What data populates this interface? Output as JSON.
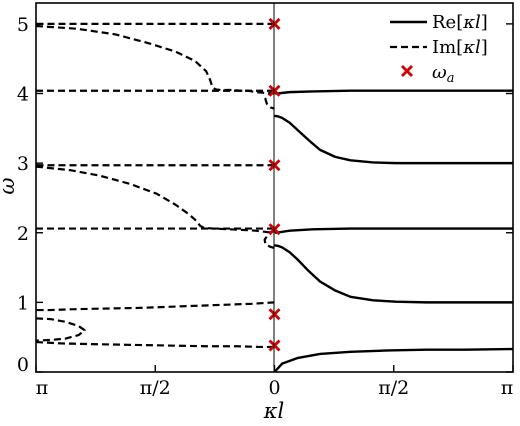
{
  "chart_data": {
    "type": "line",
    "title": "",
    "xlabel": "κl",
    "ylabel": "ω̄",
    "ylim": [
      0,
      5.3
    ],
    "grid": false,
    "legend_position": "top-right",
    "x_tick_labels": [
      "π",
      "π/2",
      "0",
      "π/2",
      "π"
    ],
    "y_ticks": [
      0,
      1,
      2,
      3,
      4,
      5
    ],
    "y_tick_labels": [
      "0",
      "1",
      "2",
      "3",
      "4",
      "5"
    ],
    "x_layout_note_left": "left half: Im[κl] branches, from π (left edge) to 0 (center)",
    "legend": [
      {
        "key": "re",
        "label_main": "Re[",
        "label_var": "κl",
        "label_end": "]"
      },
      {
        "key": "im",
        "label_main": "Im[",
        "label_var": "κl",
        "label_end": "]"
      },
      {
        "key": "wa",
        "label_var": "ω",
        "label_sub": "a"
      }
    ],
    "series": [
      {
        "name": "Re[κl]",
        "side": "right",
        "style": "solid",
        "x": [
          0,
          0.1,
          0.3,
          0.6,
          1.0,
          1.5,
          2.0,
          2.5,
          3.14159
        ],
        "y": [
          0,
          0.12,
          0.2,
          0.26,
          0.29,
          0.31,
          0.32,
          0.32,
          0.33
        ]
      },
      {
        "name": "Re[κl]",
        "side": "right",
        "style": "solid",
        "x": [
          0,
          0.05,
          0.1,
          0.2,
          0.3,
          0.45,
          0.6,
          0.8,
          1.0,
          1.3,
          1.6,
          2.0,
          2.5,
          3.14159
        ],
        "y": [
          1.82,
          1.81,
          1.79,
          1.72,
          1.62,
          1.45,
          1.3,
          1.17,
          1.08,
          1.03,
          1.01,
          1.0,
          1.0,
          1.0
        ]
      },
      {
        "name": "Re[κl]",
        "side": "right",
        "style": "solid",
        "x": [
          0,
          0.02,
          0.2,
          0.5,
          1.0,
          2.0,
          3.14159
        ],
        "y": [
          2.05,
          2.0,
          2.03,
          2.05,
          2.06,
          2.06,
          2.06
        ]
      },
      {
        "name": "Re[κl]",
        "side": "right",
        "style": "solid",
        "x": [
          0,
          0.05,
          0.1,
          0.2,
          0.3,
          0.45,
          0.6,
          0.8,
          1.0,
          1.3,
          1.6,
          2.0,
          2.5,
          3.14159
        ],
        "y": [
          3.68,
          3.67,
          3.65,
          3.58,
          3.48,
          3.33,
          3.19,
          3.09,
          3.04,
          3.01,
          3.0,
          3.0,
          3.0,
          3.0
        ]
      },
      {
        "name": "Re[κl]",
        "side": "right",
        "style": "solid",
        "x": [
          0,
          0.02,
          0.2,
          0.5,
          1.0,
          2.0,
          3.14159
        ],
        "y": [
          4.05,
          4.0,
          4.02,
          4.03,
          4.04,
          4.04,
          4.04
        ]
      },
      {
        "name": "Im[κl]",
        "side": "left",
        "style": "dashed",
        "x": [
          0,
          0.4,
          1.0,
          2.0,
          3.14159
        ],
        "y": [
          5.0,
          5.0,
          5.0,
          5.0,
          5.0
        ]
      },
      {
        "name": "Im[κl]",
        "side": "left",
        "style": "dashed",
        "x": [
          3.14159,
          2.6,
          2.1,
          1.65,
          1.3,
          1.05,
          0.9,
          0.85,
          0.82,
          0.78,
          0.7,
          0.55,
          0.45,
          0.35,
          0.25,
          0.12,
          0
        ],
        "y": [
          4.97,
          4.93,
          4.85,
          4.72,
          4.6,
          4.47,
          4.32,
          4.2,
          4.1,
          4.06,
          4.05,
          4.05,
          4.04,
          4.04,
          4.02,
          4.01,
          4.0
        ]
      },
      {
        "name": "Im[κl]",
        "side": "left",
        "style": "dashed",
        "x": [
          0,
          0.08,
          0.12,
          0.1,
          0.05,
          0
        ],
        "y": [
          4.03,
          3.98,
          3.92,
          3.85,
          3.8,
          3.78
        ]
      },
      {
        "name": "Im[κl]",
        "side": "left",
        "style": "dashed",
        "x": [
          3.14159,
          2.5,
          1.8,
          1.2,
          0.55,
          0
        ],
        "y": [
          4.04,
          4.04,
          4.04,
          4.04,
          4.04,
          4.04
        ]
      },
      {
        "name": "Im[κl]",
        "side": "left",
        "style": "dashed",
        "x": [
          0,
          0.5,
          1.2,
          2.0,
          2.6,
          3.14159
        ],
        "y": [
          2.97,
          2.97,
          2.97,
          2.97,
          2.97,
          2.97
        ]
      },
      {
        "name": "Im[κl]",
        "side": "left",
        "style": "dashed",
        "x": [
          3.14159,
          2.7,
          2.3,
          1.9,
          1.55,
          1.3,
          1.12,
          1.03,
          0.98,
          0.93,
          0.8,
          0.6,
          0.4,
          0.25,
          0.1,
          0
        ],
        "y": [
          2.95,
          2.9,
          2.82,
          2.7,
          2.56,
          2.4,
          2.26,
          2.17,
          2.1,
          2.07,
          2.06,
          2.05,
          2.04,
          2.03,
          2.01,
          2.0
        ]
      },
      {
        "name": "Im[κl]",
        "side": "left",
        "style": "dashed",
        "x": [
          0,
          0.08,
          0.13,
          0.12,
          0.06,
          0
        ],
        "y": [
          2.05,
          1.98,
          1.9,
          1.84,
          1.8,
          1.78
        ]
      },
      {
        "name": "Im[κl]",
        "side": "left",
        "style": "dashed",
        "x": [
          3.14159,
          2.4,
          1.7,
          1.0,
          0.5,
          0
        ],
        "y": [
          2.06,
          2.06,
          2.06,
          2.06,
          2.06,
          2.06
        ]
      },
      {
        "name": "Im[κl]",
        "side": "left",
        "style": "dashed",
        "x": [
          0,
          0.3,
          0.8,
          1.3,
          1.8,
          2.3,
          2.7,
          2.95,
          3.14159
        ],
        "y": [
          1.0,
          0.98,
          0.96,
          0.94,
          0.92,
          0.91,
          0.9,
          0.89,
          0.89
        ]
      },
      {
        "name": "Im[κl]",
        "side": "left",
        "style": "dashed",
        "x": [
          3.14159,
          2.95,
          2.75,
          2.58,
          2.5,
          2.58,
          2.75,
          2.95,
          3.14159
        ],
        "y": [
          0.77,
          0.76,
          0.72,
          0.66,
          0.6,
          0.53,
          0.48,
          0.46,
          0.45
        ]
      },
      {
        "name": "Im[κl]",
        "side": "left",
        "style": "dashed",
        "x": [
          3.14159,
          2.8,
          2.4,
          1.9,
          1.4,
          0.9,
          0.5,
          0.2,
          0
        ],
        "y": [
          0.43,
          0.41,
          0.4,
          0.39,
          0.38,
          0.37,
          0.37,
          0.36,
          0.36
        ]
      }
    ],
    "omega_a_markers": {
      "name": "ω_a",
      "x": 0,
      "y": [
        0.38,
        0.83,
        2.05,
        2.97,
        4.04,
        5.0
      ]
    }
  }
}
